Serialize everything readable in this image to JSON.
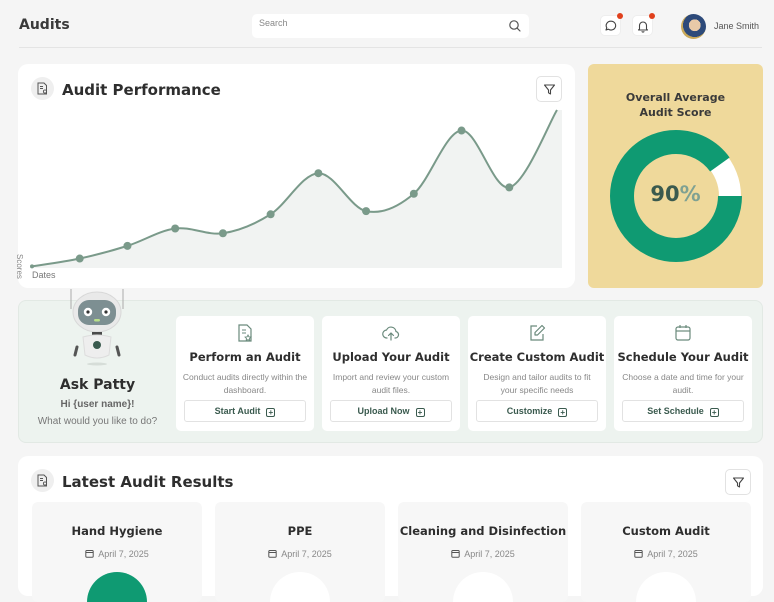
{
  "header": {
    "title": "Audits",
    "search_placeholder": "Search",
    "user_name": "Jane Smith",
    "icons": [
      "chat-icon",
      "bell-icon"
    ],
    "notification_dot_color": "#e0401c"
  },
  "performance": {
    "title": "Audit Performance",
    "y_label": "Scores",
    "x_label": "Dates"
  },
  "chart_data": {
    "type": "area",
    "title": "Audit Performance",
    "xlabel": "Dates",
    "ylabel": "Scores",
    "x": [
      1,
      2,
      3,
      4,
      5,
      6,
      7,
      8,
      9,
      10,
      11,
      12
    ],
    "values": [
      1,
      6,
      14,
      25,
      22,
      34,
      60,
      36,
      47,
      87,
      51,
      100
    ],
    "grid": false,
    "line_color": "#7a9a8a",
    "fill_color": "#f1f3f2"
  },
  "score": {
    "title_line1": "Overall Average",
    "title_line2": "Audit Score",
    "value": "90",
    "symbol": "%",
    "percent": 90,
    "color": "#0f9a72",
    "background": "#efd99b"
  },
  "ask": {
    "name": "Ask Patty",
    "greeting": "Hi {user name}!",
    "question": "What would you like to do?"
  },
  "actions": [
    {
      "title": "Perform an Audit",
      "desc": "Conduct audits directly within the dashboard.",
      "button": "Start Audit",
      "icon": "document-star-icon"
    },
    {
      "title": "Upload Your Audit",
      "desc": "Import and review your custom audit files.",
      "button": "Upload Now",
      "icon": "cloud-upload-icon"
    },
    {
      "title": "Create Custom Audit",
      "desc": "Design and tailor audits to fit your specific needs",
      "button": "Customize",
      "icon": "edit-icon"
    },
    {
      "title": "Schedule Your Audit",
      "desc": "Choose a date and time for your audit.",
      "button": "Set Schedule",
      "icon": "calendar-icon"
    }
  ],
  "latest": {
    "title": "Latest Audit Results",
    "results": [
      {
        "title": "Hand Hygiene",
        "date": "April 7, 2025"
      },
      {
        "title": "PPE",
        "date": "April 7, 2025"
      },
      {
        "title": "Cleaning and Disinfection",
        "date": "April 7, 2025"
      },
      {
        "title": "Custom Audit",
        "date": "April 7, 2025"
      }
    ]
  }
}
